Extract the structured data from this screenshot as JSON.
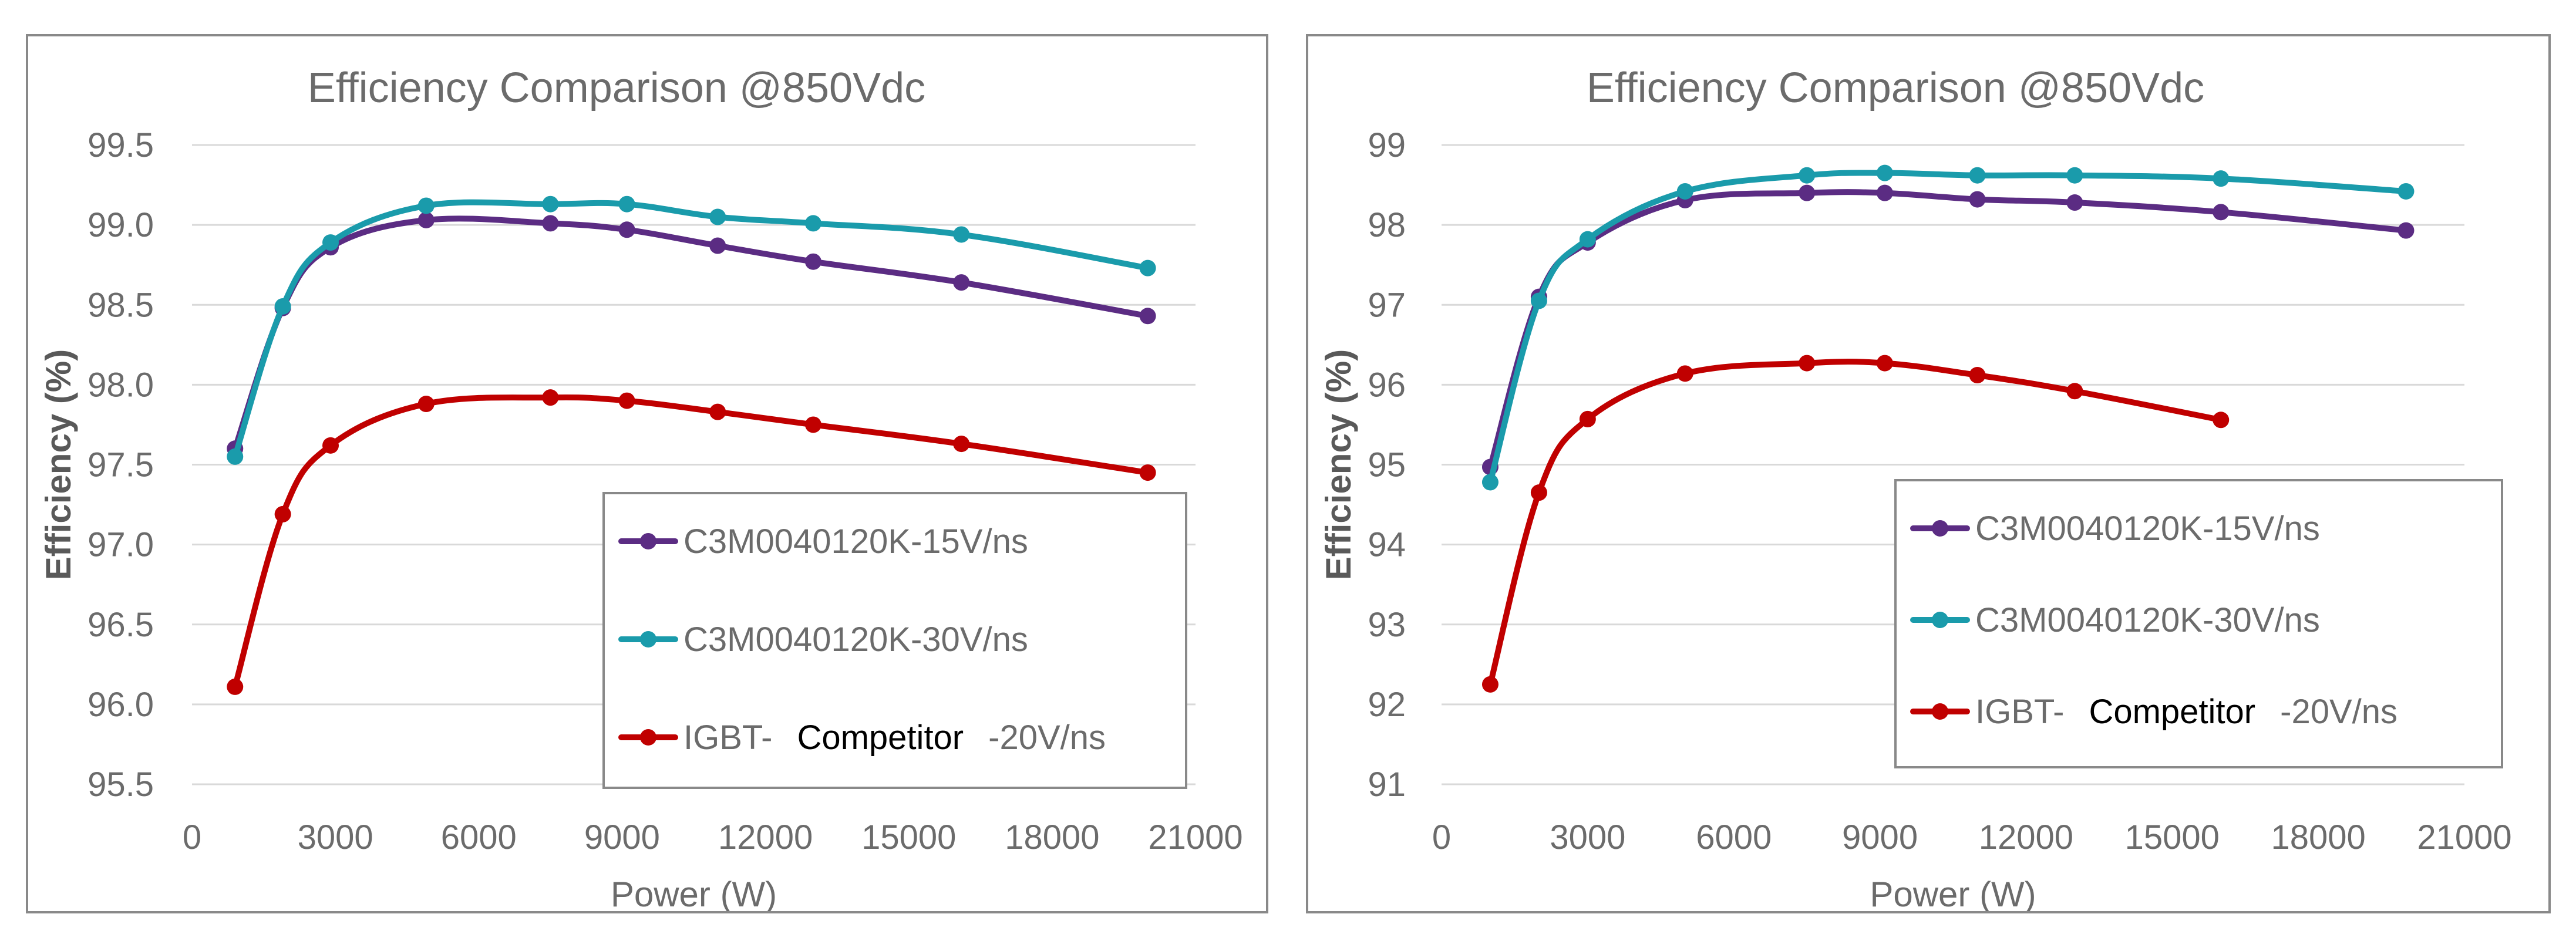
{
  "chart_data": [
    {
      "type": "line",
      "title": "Efficiency Comparison @850Vdc",
      "xlabel": "Power (W)",
      "ylabel": "Efficiency (%)",
      "xlim": [
        0,
        21000
      ],
      "ylim": [
        95.5,
        99.5
      ],
      "xticks": [
        "0",
        "3000",
        "6000",
        "9000",
        "12000",
        "15000",
        "18000",
        "21000"
      ],
      "yticks": [
        "95.5",
        "96.0",
        "96.5",
        "97.0",
        "97.5",
        "98.0",
        "98.5",
        "99.0",
        "99.5"
      ],
      "grid": true,
      "legend_position": "bottom-right",
      "series": [
        {
          "name": "C3M0040120K-15V/ns",
          "name_parts": [
            "C3M0040120K-15V/ns"
          ],
          "color": "#5b2c83",
          "points": [
            [
              900,
              97.6
            ],
            [
              1900,
              98.48
            ],
            [
              2900,
              98.86
            ],
            [
              4900,
              99.03
            ],
            [
              7500,
              99.01
            ],
            [
              9100,
              98.97
            ],
            [
              11000,
              98.87
            ],
            [
              13000,
              98.77
            ],
            [
              16100,
              98.64
            ],
            [
              20000,
              98.43
            ]
          ]
        },
        {
          "name": "C3M0040120K-30V/ns",
          "name_parts": [
            "C3M0040120K-30V/ns"
          ],
          "color": "#1a9bab",
          "points": [
            [
              900,
              97.55
            ],
            [
              1900,
              98.49
            ],
            [
              2900,
              98.89
            ],
            [
              4900,
              99.12
            ],
            [
              7500,
              99.13
            ],
            [
              9100,
              99.13
            ],
            [
              11000,
              99.05
            ],
            [
              13000,
              99.01
            ],
            [
              16100,
              98.94
            ],
            [
              20000,
              98.73
            ]
          ]
        },
        {
          "name": "IGBT-Competitor-20V/ns",
          "name_parts": [
            "IGBT-",
            "Competitor",
            "-20V/ns"
          ],
          "color": "#c00000",
          "points": [
            [
              900,
              96.11
            ],
            [
              1900,
              97.19
            ],
            [
              2900,
              97.62
            ],
            [
              4900,
              97.88
            ],
            [
              7500,
              97.92
            ],
            [
              9100,
              97.9
            ],
            [
              11000,
              97.83
            ],
            [
              13000,
              97.75
            ],
            [
              16100,
              97.63
            ],
            [
              20000,
              97.45
            ]
          ]
        }
      ]
    },
    {
      "type": "line",
      "title": "Efficiency Comparison @850Vdc",
      "xlabel": "Power (W)",
      "ylabel": "Efficiency (%)",
      "xlim": [
        0,
        21000
      ],
      "ylim": [
        91,
        99
      ],
      "xticks": [
        "0",
        "3000",
        "6000",
        "9000",
        "12000",
        "15000",
        "18000",
        "21000"
      ],
      "yticks": [
        "91",
        "92",
        "93",
        "94",
        "95",
        "96",
        "97",
        "98",
        "99"
      ],
      "grid": true,
      "legend_position": "bottom-right",
      "series": [
        {
          "name": "C3M0040120K-15V/ns",
          "name_parts": [
            "C3M0040120K-15V/ns"
          ],
          "color": "#5b2c83",
          "points": [
            [
              1000,
              94.97
            ],
            [
              2000,
              97.1
            ],
            [
              3000,
              97.78
            ],
            [
              5000,
              98.31
            ],
            [
              7500,
              98.4
            ],
            [
              9100,
              98.4
            ],
            [
              11000,
              98.32
            ],
            [
              13000,
              98.28
            ],
            [
              16000,
              98.16
            ],
            [
              19800,
              97.93
            ]
          ]
        },
        {
          "name": "C3M0040120K-30V/ns",
          "name_parts": [
            "C3M0040120K-30V/ns"
          ],
          "color": "#1a9bab",
          "points": [
            [
              1000,
              94.78
            ],
            [
              2000,
              97.05
            ],
            [
              3000,
              97.82
            ],
            [
              5000,
              98.42
            ],
            [
              7500,
              98.62
            ],
            [
              9100,
              98.65
            ],
            [
              11000,
              98.62
            ],
            [
              13000,
              98.62
            ],
            [
              16000,
              98.58
            ],
            [
              19800,
              98.42
            ]
          ]
        },
        {
          "name": "IGBT-Competitor-20V/ns",
          "name_parts": [
            "IGBT-",
            "Competitor",
            "-20V/ns"
          ],
          "color": "#c00000",
          "points": [
            [
              1000,
              92.25
            ],
            [
              2000,
              94.65
            ],
            [
              3000,
              95.57
            ],
            [
              5000,
              96.14
            ],
            [
              7500,
              96.27
            ],
            [
              9100,
              96.27
            ],
            [
              11000,
              96.12
            ],
            [
              13000,
              95.92
            ],
            [
              16000,
              95.56
            ]
          ]
        }
      ]
    }
  ]
}
